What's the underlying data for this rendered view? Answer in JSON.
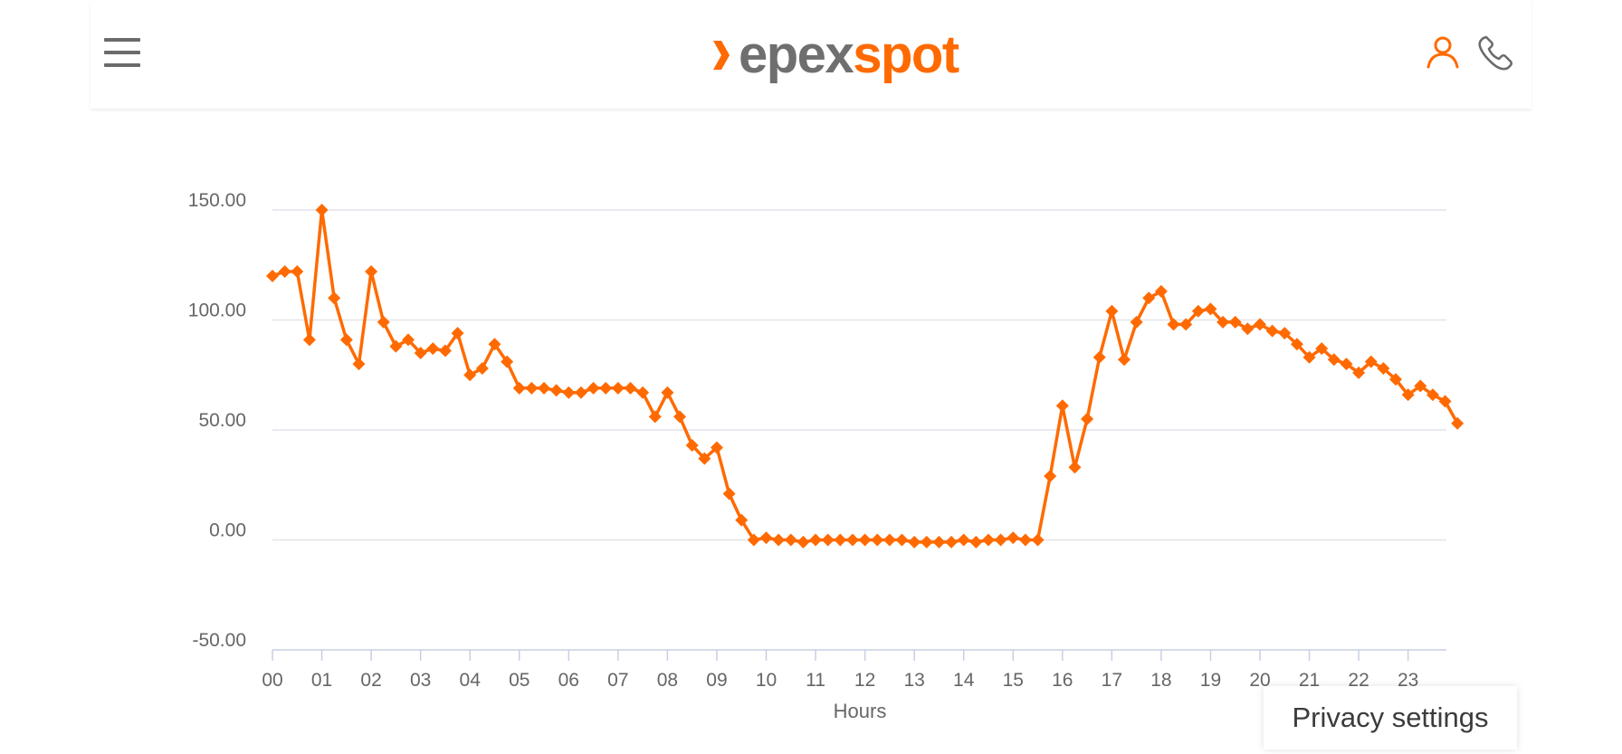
{
  "header": {
    "logo_part1": "epex",
    "logo_part2": "spot",
    "icons": [
      "menu-icon",
      "user-icon",
      "phone-icon"
    ],
    "accent_color": "#ff6a00"
  },
  "privacy": {
    "label": "Privacy settings"
  },
  "chart_data": {
    "type": "line",
    "title": "",
    "xlabel": "Hours",
    "ylabel": "",
    "ylim": [
      -50,
      150
    ],
    "yticks": [
      -50,
      0,
      50,
      100,
      150
    ],
    "ytick_labels": [
      "-50.00",
      "0.00",
      "50.00",
      "100.00",
      "150.00"
    ],
    "xtick_labels": [
      "00",
      "01",
      "02",
      "03",
      "04",
      "05",
      "06",
      "07",
      "08",
      "09",
      "10",
      "11",
      "12",
      "13",
      "14",
      "15",
      "16",
      "17",
      "18",
      "19",
      "20",
      "21",
      "22",
      "23"
    ],
    "x_interval_minutes": 15,
    "grid": true,
    "legend": "none",
    "series": [
      {
        "color": "#ff6a00",
        "marker": "diamond",
        "values": [
          120,
          122,
          122,
          91,
          150,
          110,
          91,
          80,
          122,
          99,
          88,
          91,
          85,
          87,
          86,
          94,
          75,
          78,
          89,
          81,
          69,
          69,
          69,
          68,
          67,
          67,
          69,
          69,
          69,
          69,
          67,
          56,
          67,
          56,
          43,
          37,
          42,
          21,
          9,
          0,
          1,
          0,
          0,
          -1,
          0,
          0,
          0,
          0,
          0,
          0,
          0,
          0,
          -1,
          -1,
          -1,
          -1,
          0,
          -1,
          0,
          0,
          1,
          0,
          0,
          29,
          61,
          33,
          55,
          83,
          104,
          82,
          99,
          110,
          113,
          98,
          98,
          104,
          105,
          99,
          99,
          96,
          98,
          95,
          94,
          89,
          83,
          87,
          82,
          80,
          76,
          81,
          78,
          73,
          66,
          70,
          66,
          63,
          53
        ]
      }
    ]
  }
}
